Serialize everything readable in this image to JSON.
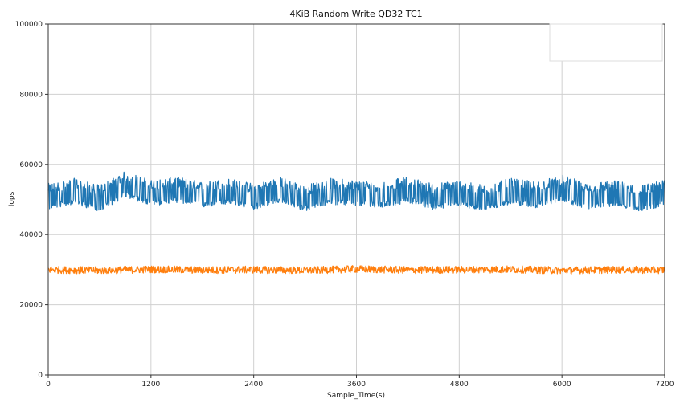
{
  "chart_data": {
    "type": "line",
    "title": "4KiB Random Write QD32 TC1",
    "xlabel": "Sample_Time(s)",
    "ylabel": "Iops",
    "xlim": [
      0,
      7200
    ],
    "ylim": [
      0,
      100000
    ],
    "xticks": [
      0,
      1200,
      2400,
      3600,
      4800,
      6000,
      7200
    ],
    "yticks": [
      0,
      20000,
      40000,
      60000,
      80000,
      100000
    ],
    "xtick_labels": [
      "0",
      "1200",
      "2400",
      "3600",
      "4800",
      "6000",
      "7200"
    ],
    "ytick_labels": [
      "0",
      "20000",
      "40000",
      "60000",
      "80000",
      "100000"
    ],
    "grid": true,
    "legend": "top-right (empty box)",
    "series": [
      {
        "color": "#1f77b4",
        "description": "noisy band oscillating between about 48000 and 56000 IOPS",
        "x": [
          0,
          300,
          600,
          900,
          1200,
          1500,
          1800,
          2100,
          2400,
          2700,
          3000,
          3300,
          3600,
          3900,
          4200,
          4500,
          4800,
          5100,
          5400,
          5700,
          6000,
          6300,
          6600,
          6900,
          7200
        ],
        "values": [
          51000,
          52500,
          50500,
          54500,
          52000,
          53000,
          51500,
          52500,
          51000,
          53000,
          50500,
          52500,
          52000,
          51500,
          53000,
          51000,
          52000,
          50500,
          52500,
          51500,
          53500,
          51000,
          52000,
          50500,
          52000
        ],
        "min": 45500,
        "max": 58500
      },
      {
        "color": "#ff7f0e",
        "description": "tight band around 30000 IOPS",
        "x": [
          0,
          600,
          1200,
          1800,
          2400,
          3000,
          3600,
          4200,
          4800,
          5400,
          6000,
          6600,
          7200
        ],
        "values": [
          30000,
          29800,
          30100,
          29900,
          30000,
          29800,
          30200,
          29900,
          30000,
          30100,
          29800,
          30000,
          29900
        ],
        "min": 28000,
        "max": 31500
      }
    ]
  }
}
